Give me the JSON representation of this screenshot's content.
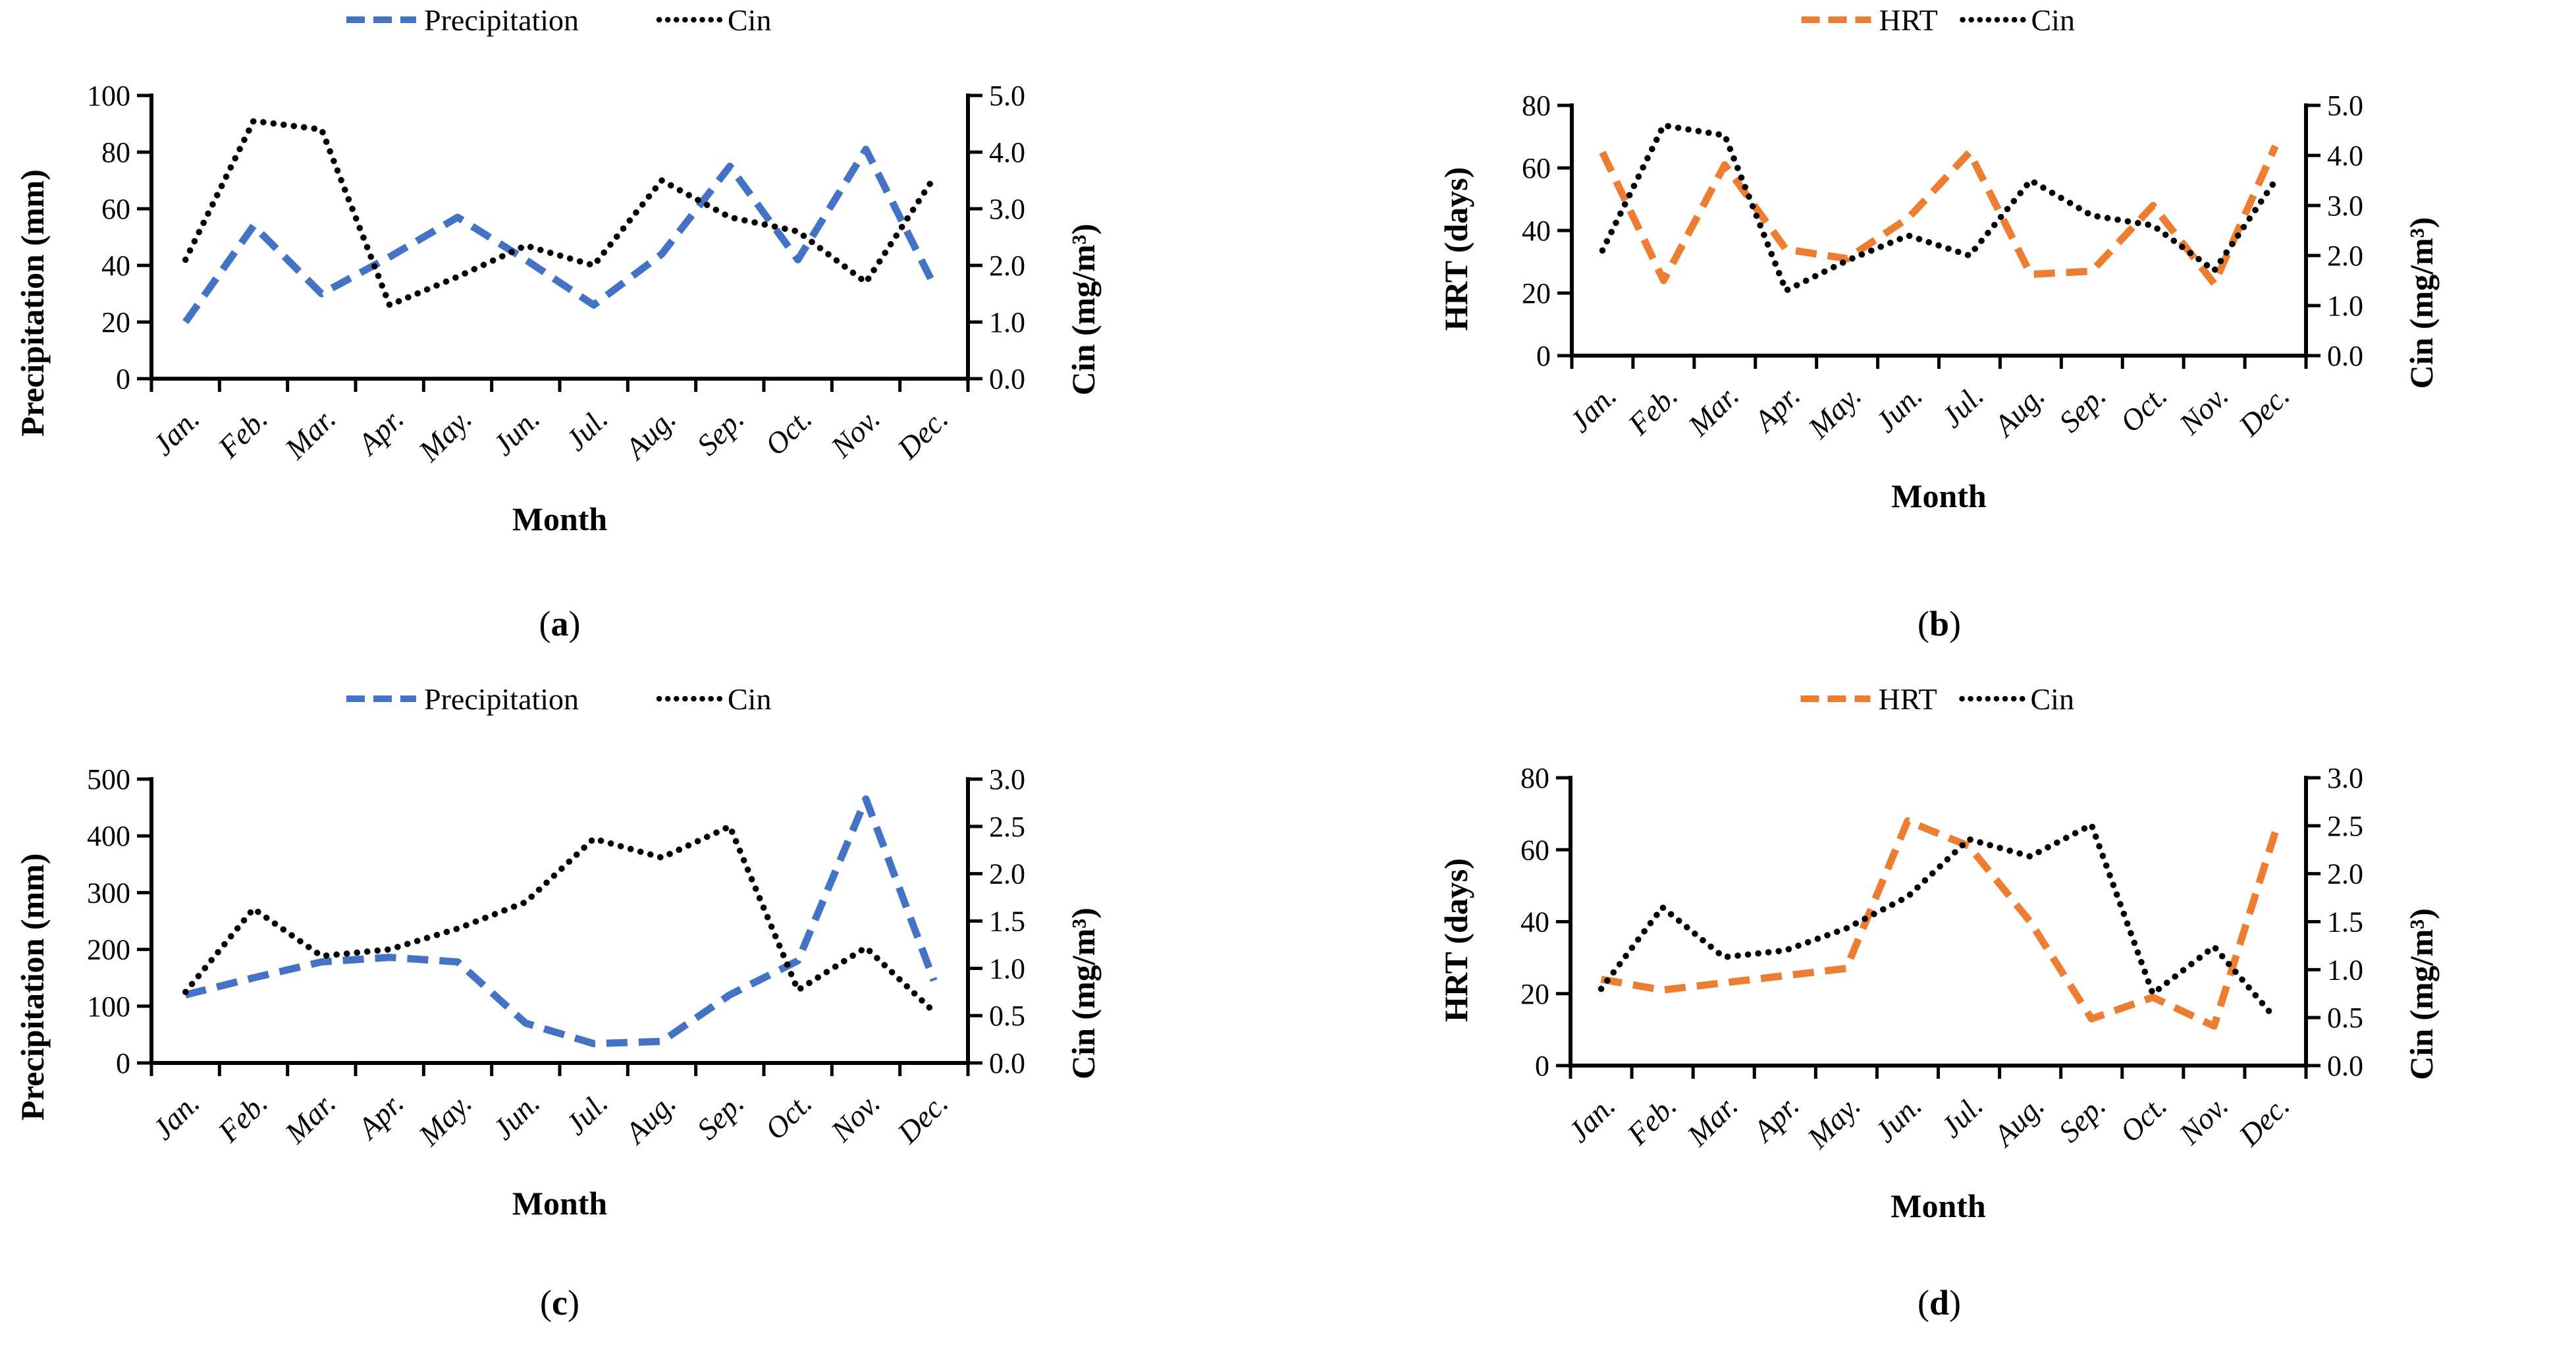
{
  "colors": {
    "precipitation": "#4472C4",
    "hrt": "#ED7D31",
    "cin": "#000000",
    "axis": "#000000"
  },
  "months": [
    "Jan.",
    "Feb.",
    "Mar.",
    "Apr.",
    "May.",
    "Jun.",
    "Jul.",
    "Aug.",
    "Sep.",
    "Oct.",
    "Nov.",
    "Dec."
  ],
  "chart_data": [
    {
      "id": "a",
      "type": "line",
      "caption": {
        "open": "(",
        "letter": "a",
        "close": ")"
      },
      "xlabel": "Month",
      "categories": [
        "Jan.",
        "Feb.",
        "Mar.",
        "Apr.",
        "May.",
        "Jun.",
        "Jul.",
        "Aug.",
        "Sep.",
        "Oct.",
        "Nov.",
        "Dec."
      ],
      "y_left": {
        "title": "Precipitation (mm)",
        "min": 0,
        "max": 100,
        "ticks": [
          {
            "value": 0,
            "label": "0"
          },
          {
            "value": 20,
            "label": "20"
          },
          {
            "value": 40,
            "label": "40"
          },
          {
            "value": 60,
            "label": "60"
          },
          {
            "value": 80,
            "label": "80"
          },
          {
            "value": 100,
            "label": "100"
          }
        ]
      },
      "y_right": {
        "title": "Cin (mg/m³)",
        "min": 0,
        "max": 5,
        "ticks": [
          {
            "value": 0,
            "label": "0.0"
          },
          {
            "value": 1,
            "label": "1.0"
          },
          {
            "value": 2,
            "label": "2.0"
          },
          {
            "value": 3,
            "label": "3.0"
          },
          {
            "value": 4,
            "label": "4.0"
          },
          {
            "value": 5,
            "label": "5.0"
          }
        ]
      },
      "legend": [
        {
          "label": "Precipitation",
          "style": "dashed",
          "color": "#4472C4"
        },
        {
          "label": "Cin",
          "style": "dotted",
          "color": "#000000"
        }
      ],
      "series": [
        {
          "name": "Precipitation",
          "axis": "left",
          "style": "dashed",
          "color": "#4472C4",
          "values": [
            20,
            54,
            30,
            43,
            57,
            42,
            26,
            44,
            75,
            42,
            81,
            33
          ]
        },
        {
          "name": "Cin",
          "axis": "right",
          "style": "dotted",
          "color": "#000000",
          "values": [
            2.1,
            4.55,
            4.4,
            1.3,
            1.8,
            2.35,
            2.0,
            3.5,
            2.85,
            2.6,
            1.7,
            3.55
          ]
        }
      ]
    },
    {
      "id": "b",
      "type": "line",
      "caption": {
        "open": "(",
        "letter": "b",
        "close": ")"
      },
      "xlabel": "Month",
      "categories": [
        "Jan.",
        "Feb.",
        "Mar.",
        "Apr.",
        "May.",
        "Jun.",
        "Jul.",
        "Aug.",
        "Sep.",
        "Oct.",
        "Nov.",
        "Dec."
      ],
      "y_left": {
        "title": "HRT (days)",
        "min": 0,
        "max": 80,
        "ticks": [
          {
            "value": 0,
            "label": "0"
          },
          {
            "value": 20,
            "label": "20"
          },
          {
            "value": 40,
            "label": "40"
          },
          {
            "value": 60,
            "label": "60"
          },
          {
            "value": 80,
            "label": "80"
          }
        ]
      },
      "y_right": {
        "title": "Cin (mg/m³)",
        "min": 0,
        "max": 5,
        "ticks": [
          {
            "value": 0,
            "label": "0.0"
          },
          {
            "value": 1,
            "label": "1.0"
          },
          {
            "value": 2,
            "label": "2.0"
          },
          {
            "value": 3,
            "label": "3.0"
          },
          {
            "value": 4,
            "label": "4.0"
          },
          {
            "value": 5,
            "label": "5.0"
          }
        ]
      },
      "legend": [
        {
          "label": "HRT",
          "style": "dashed",
          "color": "#ED7D31"
        },
        {
          "label": "Cin",
          "style": "dotted",
          "color": "#000000"
        }
      ],
      "series": [
        {
          "name": "HRT",
          "axis": "left",
          "style": "dashed",
          "color": "#ED7D31",
          "values": [
            65,
            24,
            61,
            34,
            31,
            44,
            65,
            26,
            27,
            48,
            23,
            67
          ]
        },
        {
          "name": "Cin",
          "axis": "right",
          "style": "dotted",
          "color": "#000000",
          "values": [
            2.1,
            4.6,
            4.4,
            1.3,
            1.9,
            2.4,
            2.0,
            3.5,
            2.8,
            2.6,
            1.7,
            3.5
          ]
        }
      ]
    },
    {
      "id": "c",
      "type": "line",
      "caption": {
        "open": "(",
        "letter": "c",
        "close": ")"
      },
      "xlabel": "Month",
      "categories": [
        "Jan.",
        "Feb.",
        "Mar.",
        "Apr.",
        "May.",
        "Jun.",
        "Jul.",
        "Aug.",
        "Sep.",
        "Oct.",
        "Nov.",
        "Dec."
      ],
      "y_left": {
        "title": "Precipitation (mm)",
        "min": 0,
        "max": 500,
        "ticks": [
          {
            "value": 0,
            "label": "0"
          },
          {
            "value": 100,
            "label": "100"
          },
          {
            "value": 200,
            "label": "200"
          },
          {
            "value": 300,
            "label": "300"
          },
          {
            "value": 400,
            "label": "400"
          },
          {
            "value": 500,
            "label": "500"
          }
        ]
      },
      "y_right": {
        "title": "Cin (mg/m³)",
        "min": 0,
        "max": 3,
        "ticks": [
          {
            "value": 0,
            "label": "0.0"
          },
          {
            "value": 0.5,
            "label": "0.5"
          },
          {
            "value": 1,
            "label": "1.0"
          },
          {
            "value": 1.5,
            "label": "1.5"
          },
          {
            "value": 2,
            "label": "2.0"
          },
          {
            "value": 2.5,
            "label": "2.5"
          },
          {
            "value": 3,
            "label": "3.0"
          }
        ]
      },
      "legend": [
        {
          "label": "Precipitation",
          "style": "dashed",
          "color": "#4472C4"
        },
        {
          "label": "Cin",
          "style": "dotted",
          "color": "#000000"
        }
      ],
      "series": [
        {
          "name": "Precipitation",
          "axis": "left",
          "style": "dashed",
          "color": "#4472C4",
          "values": [
            120,
            150,
            178,
            186,
            178,
            70,
            34,
            38,
            120,
            180,
            465,
            145
          ]
        },
        {
          "name": "Cin",
          "axis": "right",
          "style": "dotted",
          "color": "#000000",
          "values": [
            0.75,
            1.63,
            1.13,
            1.2,
            1.42,
            1.7,
            2.37,
            2.17,
            2.5,
            0.77,
            1.22,
            0.54
          ]
        }
      ]
    },
    {
      "id": "d",
      "type": "line",
      "caption": {
        "open": "(",
        "letter": "d",
        "close": ")"
      },
      "xlabel": "Month",
      "categories": [
        "Jan.",
        "Feb.",
        "Mar.",
        "Apr.",
        "May.",
        "Jun.",
        "Jul.",
        "Aug.",
        "Sep.",
        "Oct.",
        "Nov.",
        "Dec."
      ],
      "y_left": {
        "title": "HRT (days)",
        "min": 0,
        "max": 80,
        "ticks": [
          {
            "value": 0,
            "label": "0"
          },
          {
            "value": 20,
            "label": "20"
          },
          {
            "value": 40,
            "label": "40"
          },
          {
            "value": 60,
            "label": "60"
          },
          {
            "value": 80,
            "label": "80"
          }
        ]
      },
      "y_right": {
        "title": "Cin (mg/m³)",
        "min": 0,
        "max": 3,
        "ticks": [
          {
            "value": 0,
            "label": "0.0"
          },
          {
            "value": 0.5,
            "label": "0.5"
          },
          {
            "value": 1,
            "label": "1.0"
          },
          {
            "value": 1.5,
            "label": "1.5"
          },
          {
            "value": 2,
            "label": "2.0"
          },
          {
            "value": 2.5,
            "label": "2.5"
          },
          {
            "value": 3,
            "label": "3.0"
          }
        ]
      },
      "legend": [
        {
          "label": "HRT",
          "style": "dashed",
          "color": "#ED7D31"
        },
        {
          "label": "Cin",
          "style": "dotted",
          "color": "#000000"
        }
      ],
      "series": [
        {
          "name": "HRT",
          "axis": "left",
          "style": "dashed",
          "color": "#ED7D31",
          "values": [
            24,
            21,
            23,
            25,
            27,
            68,
            61,
            40,
            13,
            19,
            11,
            65
          ]
        },
        {
          "name": "Cin",
          "axis": "right",
          "style": "dotted",
          "color": "#000000",
          "values": [
            0.8,
            1.65,
            1.13,
            1.2,
            1.43,
            1.76,
            2.36,
            2.18,
            2.51,
            0.75,
            1.24,
            0.49
          ]
        }
      ]
    }
  ]
}
